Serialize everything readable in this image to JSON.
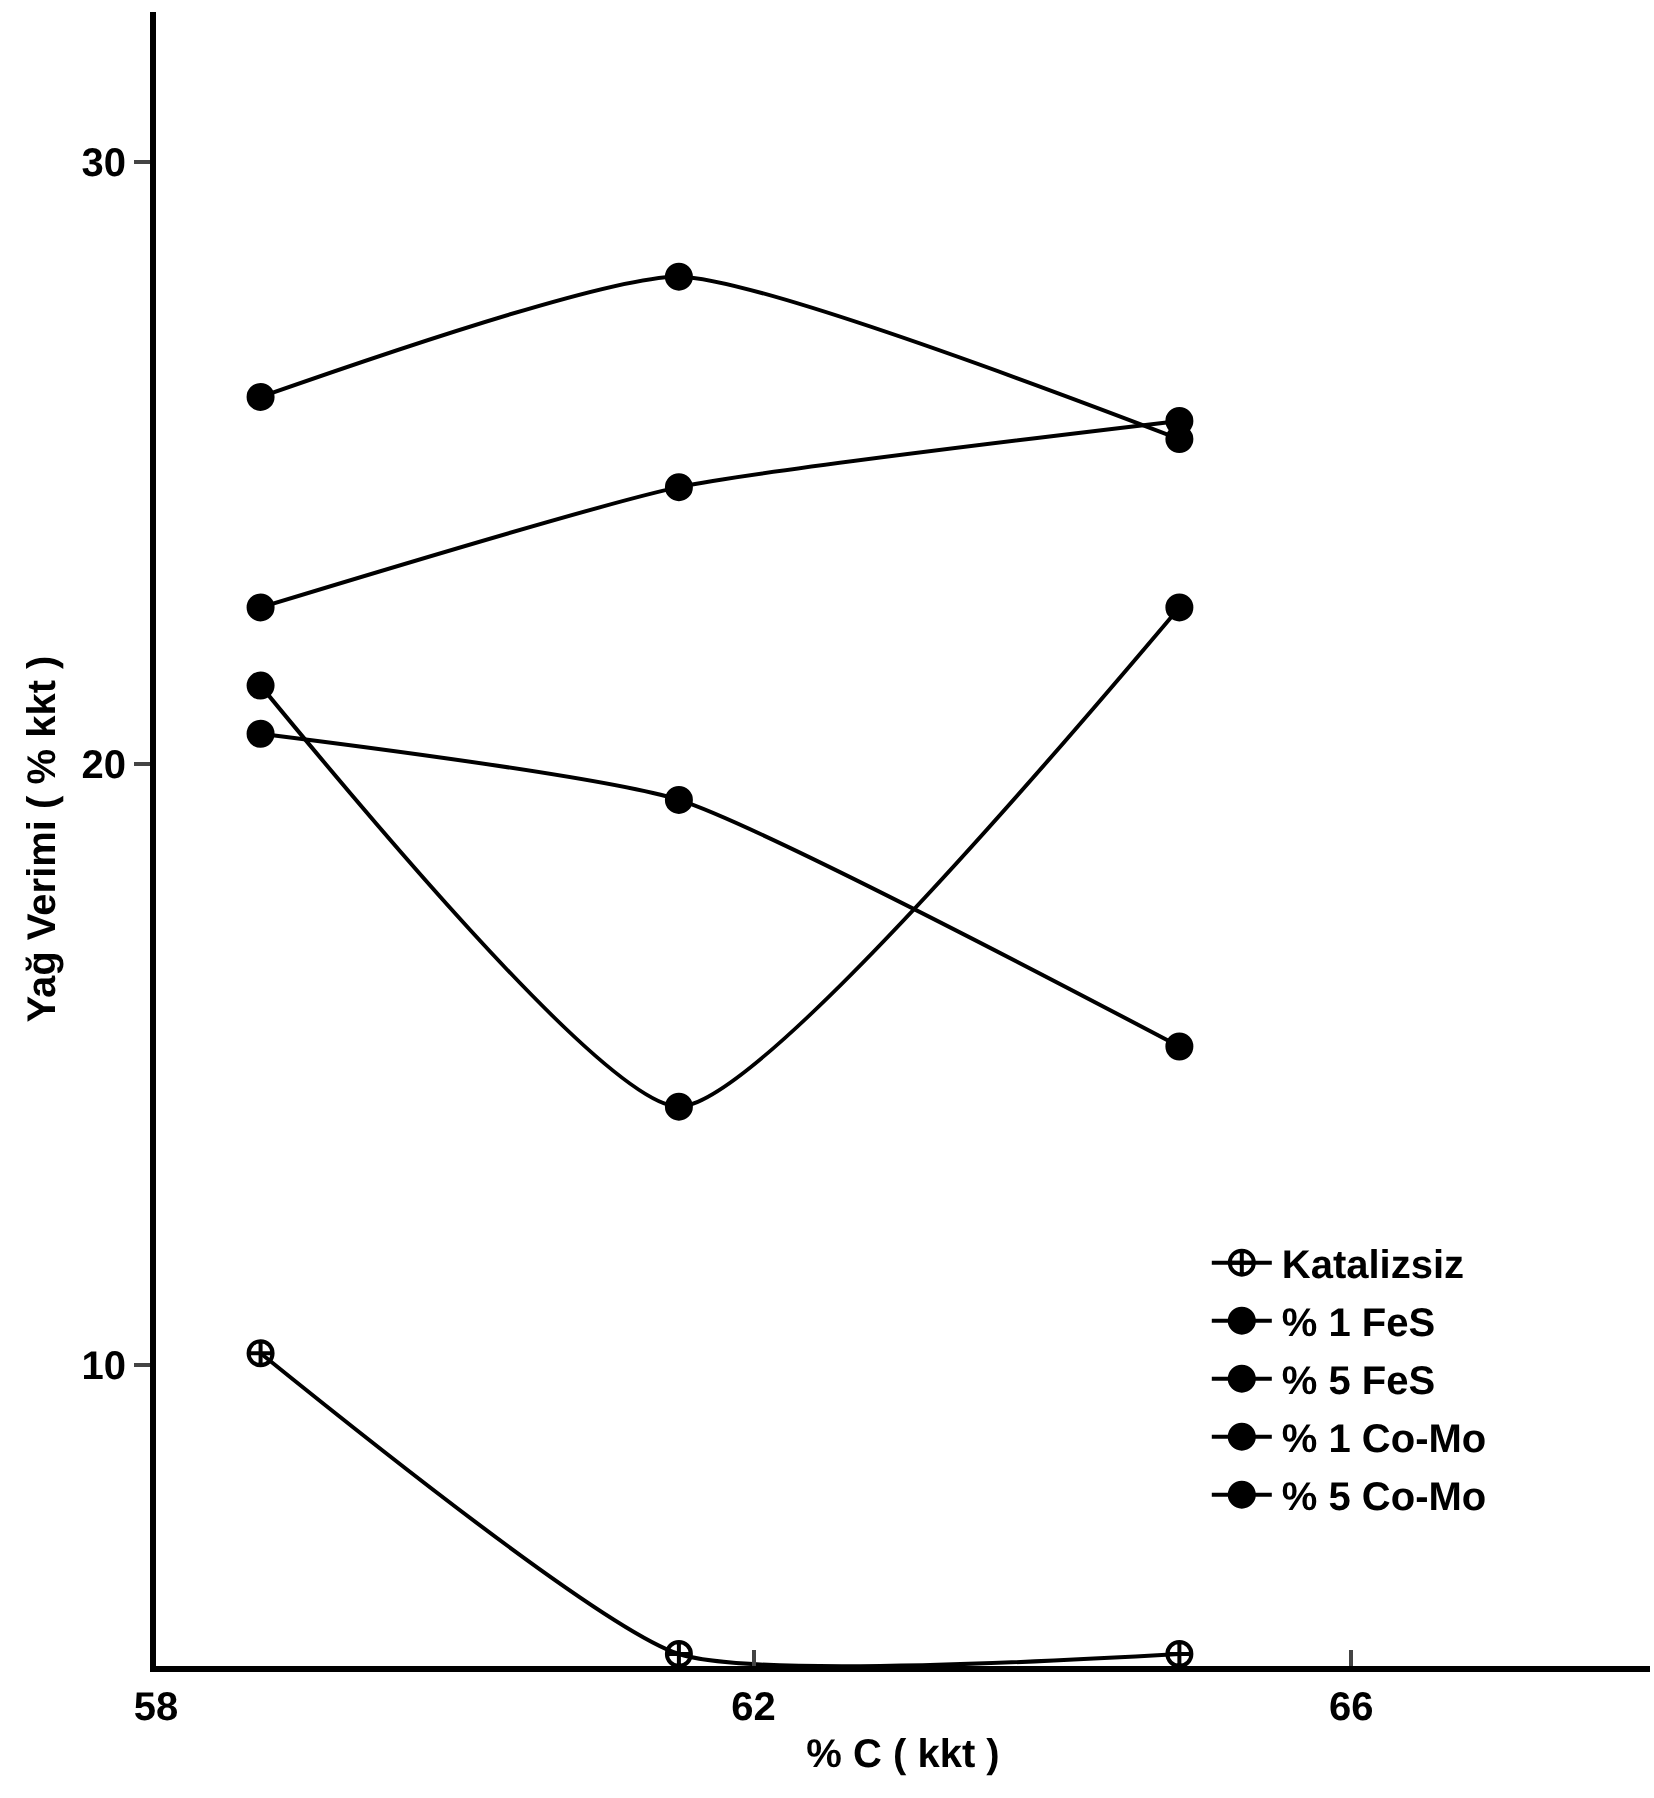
{
  "chart_data": {
    "type": "line",
    "xlabel": "% C ( kkt )",
    "ylabel": "Yağ Verimi ( % kkt )",
    "xlim": [
      58,
      68
    ],
    "xticks": [
      58,
      62,
      66
    ],
    "ylim": [
      5,
      32.5
    ],
    "yticks": [
      10,
      20,
      30
    ],
    "grid": false,
    "legend": "bottom right",
    "series": [
      {
        "name": "Katalizsiz",
        "color": "#000000",
        "marker": "cross",
        "x": [
          58.7,
          61.5,
          64.85
        ],
        "values": [
          10.2,
          5.2,
          5.2
        ]
      },
      {
        "name": "% 1 FeS",
        "color": "#000000",
        "marker": "circle",
        "x": [
          58.7,
          61.5,
          64.85
        ],
        "values": [
          21.3,
          14.3,
          22.6
        ]
      },
      {
        "name": "% 5 FeS",
        "color": "#000000",
        "marker": "circle",
        "x": [
          58.7,
          61.5,
          64.85
        ],
        "values": [
          26.1,
          28.1,
          25.4
        ]
      },
      {
        "name": "% 1 Co-Mo",
        "color": "#000000",
        "marker": "circle",
        "x": [
          58.7,
          61.5,
          64.85
        ],
        "values": [
          20.5,
          19.4,
          15.3
        ]
      },
      {
        "name": "% 5 Co-Mo",
        "color": "#000000",
        "marker": "circle",
        "x": [
          58.7,
          61.5,
          64.85
        ],
        "values": [
          22.6,
          24.6,
          25.7
        ]
      }
    ]
  }
}
